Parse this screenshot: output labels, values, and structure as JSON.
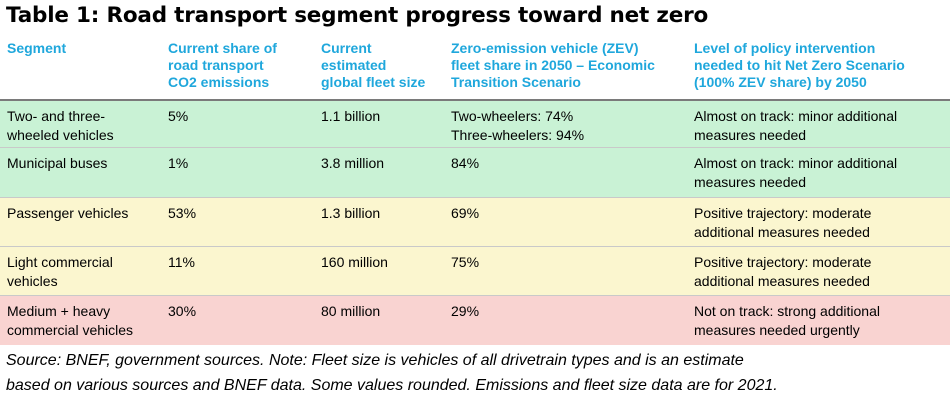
{
  "title": "Table 1: Road transport segment progress toward net zero",
  "columns": [
    {
      "lines": [
        "Segment"
      ]
    },
    {
      "lines": [
        "Current share of",
        "road transport",
        "CO2 emissions"
      ]
    },
    {
      "lines": [
        "Current",
        "estimated",
        "global fleet size"
      ]
    },
    {
      "lines": [
        "Zero-emission vehicle (ZEV)",
        "fleet share in 2050 – Economic",
        "Transition Scenario"
      ]
    },
    {
      "lines": [
        "Level of policy intervention",
        "needed to hit Net Zero Scenario",
        "(100% ZEV share) by 2050"
      ]
    }
  ],
  "colors": {
    "header_text": "#1fa7dc",
    "on_track": "#c9f2d5",
    "positive": "#fbf6cf",
    "not_on_track": "#f9d3d1"
  },
  "rows": [
    {
      "segment": [
        "Two- and three-",
        "wheeled vehicles"
      ],
      "share": "5%",
      "fleet": "1.1 billion",
      "zev": [
        "Two-wheelers: 74%",
        "Three-wheelers: 94%"
      ],
      "policy": [
        "Almost on track: minor additional",
        "measures needed"
      ],
      "color": "#c9f2d5"
    },
    {
      "segment": [
        "Municipal buses"
      ],
      "share": "1%",
      "fleet": "3.8 million",
      "zev": [
        "84%"
      ],
      "policy": [
        "Almost on track: minor additional",
        "measures needed"
      ],
      "color": "#c9f2d5"
    },
    {
      "segment": [
        "Passenger vehicles"
      ],
      "share": "53%",
      "fleet": "1.3 billion",
      "zev": [
        "69%"
      ],
      "policy": [
        "Positive trajectory: moderate",
        "additional measures needed"
      ],
      "color": "#fbf6cf"
    },
    {
      "segment": [
        "Light commercial",
        "vehicles"
      ],
      "share": "11%",
      "fleet": "160 million",
      "zev": [
        "75%"
      ],
      "policy": [
        "Positive trajectory: moderate",
        "additional measures needed"
      ],
      "color": "#fbf6cf"
    },
    {
      "segment": [
        "Medium + heavy",
        "commercial vehicles"
      ],
      "share": "30%",
      "fleet": "80 million",
      "zev": [
        "29%"
      ],
      "policy": [
        "Not on track: strong additional",
        "measures needed urgently"
      ],
      "color": "#f9d3d1"
    }
  ],
  "source": [
    "Source: BNEF, government sources. Note: Fleet size is vehicles of all drivetrain types and is an estimate",
    "based on various sources and BNEF data. Some values rounded. Emissions and fleet size data are for 2021."
  ]
}
